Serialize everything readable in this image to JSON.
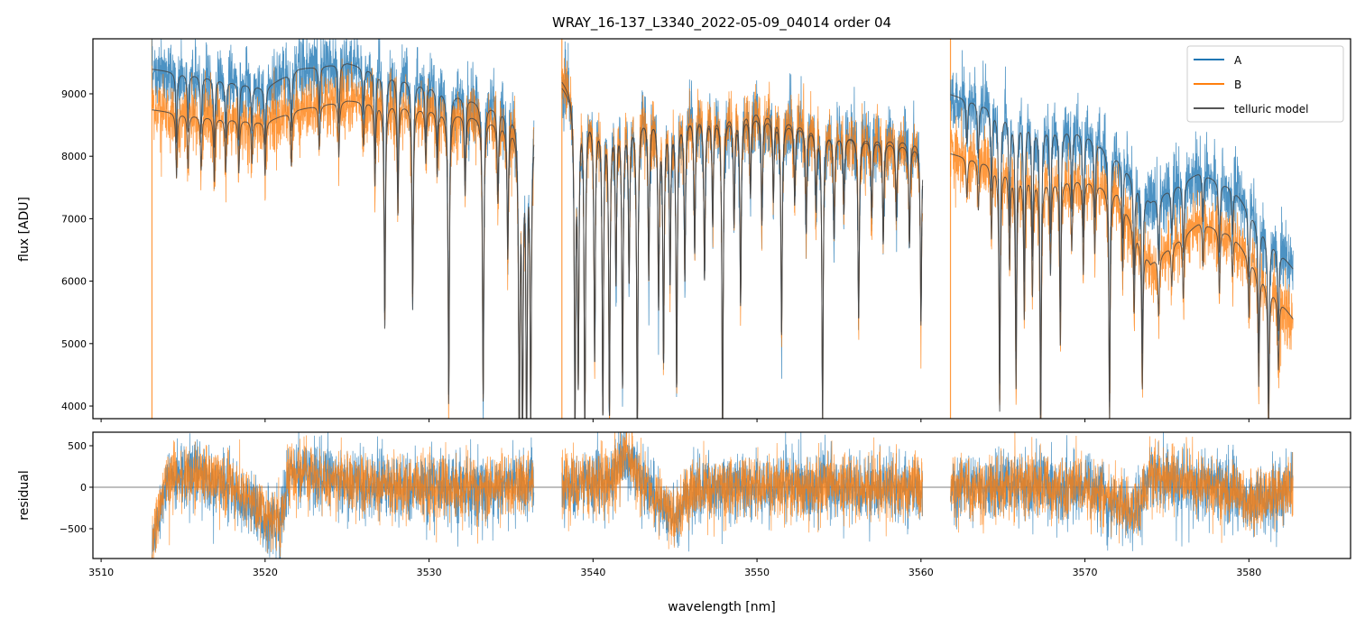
{
  "chart_data": [
    {
      "type": "line",
      "title": "WRAY_16-137_L3340_2022-05-09_04014  order 04",
      "xlabel": "wavelength [nm]",
      "ylabel": "flux [ADU]",
      "xlim": [
        3509.5,
        3586.2
      ],
      "ylim": [
        3798,
        9881
      ],
      "xticks": [
        3510,
        3520,
        3530,
        3540,
        3550,
        3560,
        3570,
        3580
      ],
      "yticks": [
        4000,
        5000,
        6000,
        7000,
        8000,
        9000
      ],
      "legend": {
        "placement": "top-right",
        "entries": [
          "A",
          "B",
          "telluric model"
        ]
      },
      "colors": {
        "A": "#1f77b4",
        "B": "#ff7f0e",
        "telluric model": "#444444"
      },
      "segments": [
        [
          3513.1,
          3536.4
        ],
        [
          3538.1,
          3560.1
        ],
        [
          3561.8,
          3582.7
        ]
      ],
      "continuum_A": [
        [
          3513,
          9400
        ],
        [
          3516,
          9300
        ],
        [
          3520,
          9100
        ],
        [
          3522,
          9400
        ],
        [
          3525,
          9500
        ],
        [
          3528,
          9300
        ],
        [
          3533,
          8900
        ],
        [
          3536.4,
          8600
        ],
        [
          3538.1,
          9150
        ],
        [
          3540,
          8650
        ],
        [
          3545,
          8650
        ],
        [
          3550,
          8650
        ],
        [
          3555,
          8350
        ],
        [
          3560.1,
          8250
        ],
        [
          3561.8,
          9000
        ],
        [
          3565,
          8750
        ],
        [
          3568,
          8500
        ],
        [
          3570,
          8400
        ],
        [
          3572,
          8000
        ],
        [
          3574,
          7300
        ],
        [
          3577,
          7750
        ],
        [
          3579,
          7500
        ],
        [
          3582.7,
          6200
        ]
      ],
      "continuum_B": [
        [
          3513,
          8750
        ],
        [
          3516,
          8650
        ],
        [
          3520,
          8550
        ],
        [
          3522,
          8750
        ],
        [
          3525,
          8900
        ],
        [
          3528,
          8850
        ],
        [
          3533,
          8650
        ],
        [
          3536.4,
          8400
        ],
        [
          3538.1,
          9250
        ],
        [
          3540,
          8650
        ],
        [
          3545,
          8650
        ],
        [
          3550,
          8750
        ],
        [
          3555,
          8350
        ],
        [
          3560.1,
          8150
        ],
        [
          3561.8,
          8050
        ],
        [
          3565,
          7850
        ],
        [
          3568,
          7650
        ],
        [
          3570,
          7650
        ],
        [
          3572,
          7450
        ],
        [
          3574,
          6300
        ],
        [
          3577,
          6950
        ],
        [
          3579,
          6750
        ],
        [
          3582.7,
          5400
        ]
      ],
      "absorption_lines": [
        [
          3514.6,
          0.12
        ],
        [
          3515.3,
          0.1
        ],
        [
          3516.1,
          0.1
        ],
        [
          3516.9,
          0.12
        ],
        [
          3517.6,
          0.1
        ],
        [
          3518.4,
          0.1
        ],
        [
          3519.2,
          0.08
        ],
        [
          3520.0,
          0.1
        ],
        [
          3521.6,
          0.1
        ],
        [
          3523.3,
          0.08
        ],
        [
          3524.5,
          0.1
        ],
        [
          3526.0,
          0.08
        ],
        [
          3526.7,
          0.15
        ],
        [
          3527.3,
          0.41
        ],
        [
          3528.1,
          0.2
        ],
        [
          3529.0,
          0.37
        ],
        [
          3529.8,
          0.1
        ],
        [
          3530.5,
          0.12
        ],
        [
          3531.2,
          0.54
        ],
        [
          3532.2,
          0.15
        ],
        [
          3533.3,
          0.53
        ],
        [
          3534.2,
          0.15
        ],
        [
          3534.8,
          0.25
        ],
        [
          3535.5,
          0.6
        ],
        [
          3535.7,
          0.6
        ],
        [
          3535.95,
          0.6
        ],
        [
          3536.2,
          0.55
        ],
        [
          3538.9,
          0.6
        ],
        [
          3539.1,
          0.5
        ],
        [
          3539.5,
          0.6
        ],
        [
          3540.1,
          0.45
        ],
        [
          3540.6,
          0.55
        ],
        [
          3541.0,
          0.55
        ],
        [
          3541.4,
          0.3
        ],
        [
          3541.8,
          0.5
        ],
        [
          3542.2,
          0.3
        ],
        [
          3542.7,
          0.6
        ],
        [
          3543.4,
          0.3
        ],
        [
          3544.0,
          0.35
        ],
        [
          3544.3,
          0.45
        ],
        [
          3544.7,
          0.3
        ],
        [
          3545.1,
          0.5
        ],
        [
          3545.6,
          0.3
        ],
        [
          3546.2,
          0.25
        ],
        [
          3546.8,
          0.3
        ],
        [
          3547.3,
          0.2
        ],
        [
          3547.9,
          0.6
        ],
        [
          3548.6,
          0.2
        ],
        [
          3549.0,
          0.35
        ],
        [
          3549.6,
          0.15
        ],
        [
          3550.3,
          0.2
        ],
        [
          3551.0,
          0.15
        ],
        [
          3551.5,
          0.4
        ],
        [
          3552.3,
          0.15
        ],
        [
          3553.0,
          0.2
        ],
        [
          3553.6,
          0.15
        ],
        [
          3554.0,
          0.55
        ],
        [
          3554.7,
          0.2
        ],
        [
          3555.3,
          0.15
        ],
        [
          3556.2,
          0.35
        ],
        [
          3557.0,
          0.15
        ],
        [
          3557.7,
          0.2
        ],
        [
          3558.5,
          0.15
        ],
        [
          3559.3,
          0.2
        ],
        [
          3560.0,
          0.35
        ],
        [
          3562.8,
          0.08
        ],
        [
          3563.5,
          0.1
        ],
        [
          3564.3,
          0.15
        ],
        [
          3564.8,
          0.5
        ],
        [
          3565.4,
          0.2
        ],
        [
          3565.8,
          0.45
        ],
        [
          3566.3,
          0.3
        ],
        [
          3566.8,
          0.25
        ],
        [
          3567.3,
          0.55
        ],
        [
          3567.9,
          0.2
        ],
        [
          3568.5,
          0.35
        ],
        [
          3569.2,
          0.15
        ],
        [
          3569.9,
          0.2
        ],
        [
          3570.6,
          0.15
        ],
        [
          3571.5,
          0.5
        ],
        [
          3572.3,
          0.15
        ],
        [
          3573.0,
          0.2
        ],
        [
          3573.5,
          0.35
        ],
        [
          3574.5,
          0.15
        ],
        [
          3575.3,
          0.1
        ],
        [
          3576.0,
          0.15
        ],
        [
          3577.2,
          0.1
        ],
        [
          3578.2,
          0.15
        ],
        [
          3579.0,
          0.1
        ],
        [
          3580.0,
          0.15
        ],
        [
          3580.6,
          0.3
        ],
        [
          3581.2,
          0.4
        ],
        [
          3581.8,
          0.2
        ]
      ],
      "noise_sigma": {
        "A": 280,
        "B": 260
      }
    },
    {
      "type": "line",
      "xlabel": "wavelength [nm]",
      "ylabel": "residual",
      "xlim": [
        3509.5,
        3586.2
      ],
      "ylim": [
        -859,
        663
      ],
      "xticks": [
        3510,
        3520,
        3530,
        3540,
        3550,
        3560,
        3570,
        3580
      ],
      "yticks": [
        -500,
        0,
        500
      ],
      "tick_labels": [
        "−500",
        "0",
        "500"
      ],
      "reference_line": 0,
      "residual_trend": [
        [
          3513.1,
          -700
        ],
        [
          3514,
          100
        ],
        [
          3516,
          150
        ],
        [
          3518,
          0
        ],
        [
          3520,
          -350
        ],
        [
          3521,
          -400
        ],
        [
          3521.5,
          200
        ],
        [
          3524,
          100
        ],
        [
          3528,
          0
        ],
        [
          3532,
          -30
        ],
        [
          3536.4,
          50
        ],
        [
          3538.1,
          0
        ],
        [
          3541,
          100
        ],
        [
          3542,
          400
        ],
        [
          3543,
          50
        ],
        [
          3545,
          -400
        ],
        [
          3546,
          0
        ],
        [
          3550,
          0
        ],
        [
          3555,
          0
        ],
        [
          3560.1,
          0
        ],
        [
          3561.8,
          0
        ],
        [
          3570,
          0
        ],
        [
          3571.5,
          -150
        ],
        [
          3573,
          -300
        ],
        [
          3574,
          150
        ],
        [
          3578,
          0
        ],
        [
          3580.5,
          -200
        ],
        [
          3582.7,
          0
        ]
      ],
      "noise_sigma": {
        "A": 200,
        "B": 190
      }
    }
  ]
}
